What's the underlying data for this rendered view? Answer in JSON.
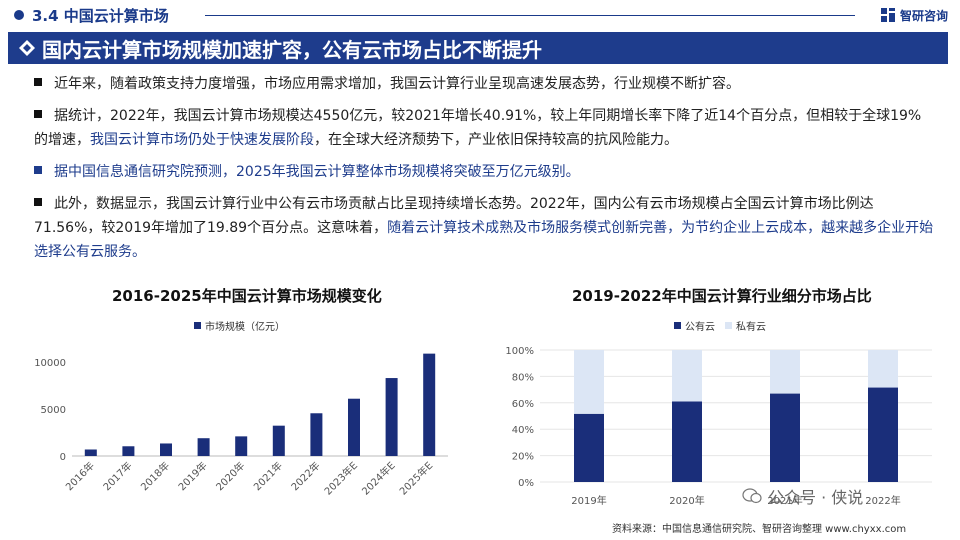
{
  "header": {
    "section": "3.4  中国云计算市场",
    "brand": "智研咨询"
  },
  "banner": {
    "title": "国内云计算市场规模加速扩容，公有云市场占比不断提升"
  },
  "paragraphs": {
    "p1": "近年来，随着政策支持力度增强，市场应用需求增加，我国云计算行业呈现高速发展态势，行业规模不断扩容。",
    "p2a": "据统计，2022年，我国云计算市场规模达4550亿元，较2021年增长40.91%，较上年同期增长率下降了近14个百分点，但相较于全球19%的增速，",
    "p2b": "我国云计算市场仍处于快速发展阶段",
    "p2c": "，在全球大经济颓势下，产业依旧保持较高的抗风险能力。",
    "p3": "据中国信息通信研究院预测，2025年我国云计算整体市场规模将突破至万亿元级别。",
    "p4a": "此外，数据显示，我国云计算行业中公有云市场贡献占比呈现持续增长态势。2022年，国内公有云市场规模占全国云计算市场比例达71.56%，较2019年增加了19.89个百分点。这意味着，",
    "p4b": "随着云计算技术成熟及市场服务模式创新完善，为节约企业上云成本，越来越多企业开始选择公有云服务。"
  },
  "chart_data": [
    {
      "type": "bar",
      "title": "2016-2025年中国云计算市场规模变化",
      "series": [
        {
          "name": "市场规模（亿元）",
          "values": [
            692,
            1036,
            1334,
            1894,
            2091,
            3229,
            4550,
            6100,
            8300,
            10900
          ]
        }
      ],
      "categories": [
        "2016年",
        "2017年",
        "2018年",
        "2019年",
        "2020年",
        "2021年",
        "2022年",
        "2023年E",
        "2024年E",
        "2025年E"
      ],
      "yticks": [
        "0",
        "5000",
        "10000"
      ],
      "ylim": [
        0,
        11500
      ],
      "color": "#1a2e7a"
    },
    {
      "type": "bar",
      "stacked": true,
      "title": "2019-2022年中国云计算行业细分市场占比",
      "categories": [
        "2019年",
        "2020年",
        "2021年",
        "2022年"
      ],
      "series": [
        {
          "name": "公有云",
          "values": [
            51.67,
            61.0,
            67.0,
            71.56
          ],
          "color": "#1a2e7a"
        },
        {
          "name": "私有云",
          "values": [
            48.33,
            39.0,
            33.0,
            28.44
          ],
          "color": "#dce6f5"
        }
      ],
      "yticks": [
        "0%",
        "20%",
        "40%",
        "60%",
        "80%",
        "100%"
      ],
      "ylim": [
        0,
        100
      ]
    }
  ],
  "footer": {
    "source": "资料来源：中国信息通信研究院、智研咨询整理 www.chyxx.com",
    "wechat": "公众号 · 侠说"
  }
}
